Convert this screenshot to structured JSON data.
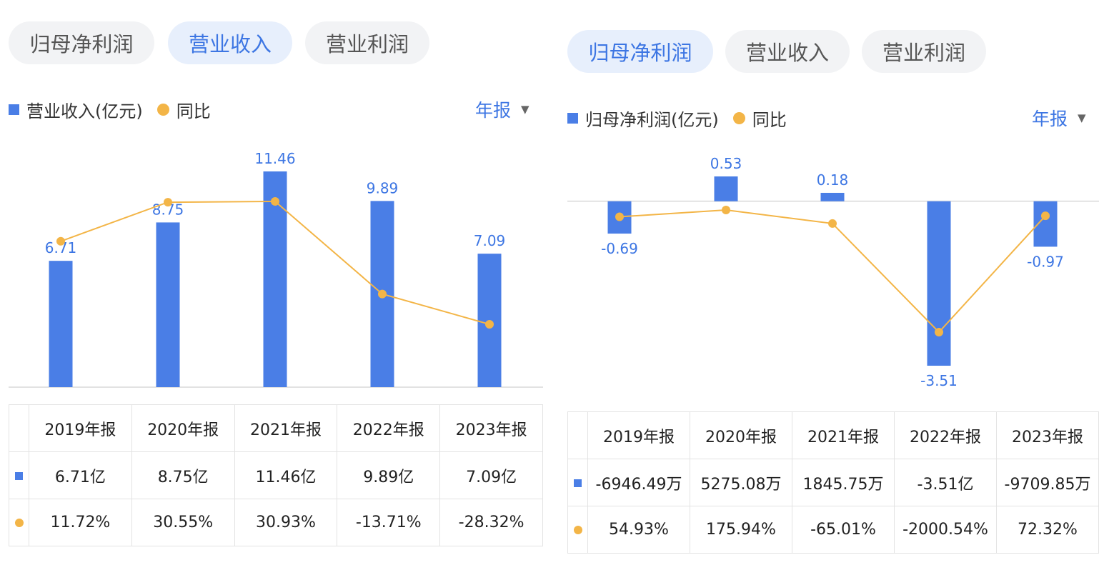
{
  "left": {
    "tabs": [
      "归母净利润",
      "营业收入",
      "营业利润"
    ],
    "active_tab": 1,
    "legend": {
      "bar": "营业收入(亿元)",
      "line": "同比"
    },
    "period": "年报",
    "table": {
      "headers": [
        "2019年报",
        "2020年报",
        "2021年报",
        "2022年报",
        "2023年报"
      ],
      "values": [
        "6.71亿",
        "8.75亿",
        "11.46亿",
        "9.89亿",
        "7.09亿"
      ],
      "yoy": [
        "11.72%",
        "30.55%",
        "30.93%",
        "-13.71%",
        "-28.32%"
      ]
    }
  },
  "right": {
    "tabs": [
      "归母净利润",
      "营业收入",
      "营业利润"
    ],
    "active_tab": 0,
    "legend": {
      "bar": "归母净利润(亿元)",
      "line": "同比"
    },
    "period": "年报",
    "table": {
      "headers": [
        "2019年报",
        "2020年报",
        "2021年报",
        "2022年报",
        "2023年报"
      ],
      "values": [
        "-6946.49万",
        "5275.08万",
        "1845.75万",
        "-3.51亿",
        "-9709.85万"
      ],
      "yoy": [
        "54.93%",
        "175.94%",
        "-65.01%",
        "-2000.54%",
        "72.32%"
      ]
    }
  },
  "colors": {
    "bar": "#4a7ee6",
    "line": "#f3b547",
    "accent": "#3d76e3",
    "positive": "#e0433f",
    "negative": "#2f9e5b"
  },
  "chart_data": [
    {
      "type": "bar",
      "title": "营业收入",
      "categories": [
        "2019年报",
        "2020年报",
        "2021年报",
        "2022年报",
        "2023年报"
      ],
      "series": [
        {
          "name": "营业收入(亿元)",
          "type": "bar",
          "values": [
            6.71,
            8.75,
            11.46,
            9.89,
            7.09
          ],
          "labels": [
            "6.71",
            "8.75",
            "11.46",
            "9.89",
            "7.09"
          ]
        },
        {
          "name": "同比",
          "type": "line",
          "values": [
            11.72,
            30.55,
            30.93,
            -13.71,
            -28.32
          ]
        }
      ],
      "ylim": [
        0,
        11.46
      ]
    },
    {
      "type": "bar",
      "title": "归母净利润",
      "categories": [
        "2019年报",
        "2020年报",
        "2021年报",
        "2022年报",
        "2023年报"
      ],
      "series": [
        {
          "name": "归母净利润(亿元)",
          "type": "bar",
          "values": [
            -0.69,
            0.53,
            0.18,
            -3.51,
            -0.97
          ],
          "labels": [
            "-0.69",
            "0.53",
            "0.18",
            "-3.51",
            "-0.97"
          ]
        },
        {
          "name": "同比",
          "type": "line",
          "values": [
            54.93,
            175.94,
            -65.01,
            -2000.54,
            72.32
          ]
        }
      ],
      "ylim": [
        -3.51,
        0.53
      ]
    }
  ]
}
